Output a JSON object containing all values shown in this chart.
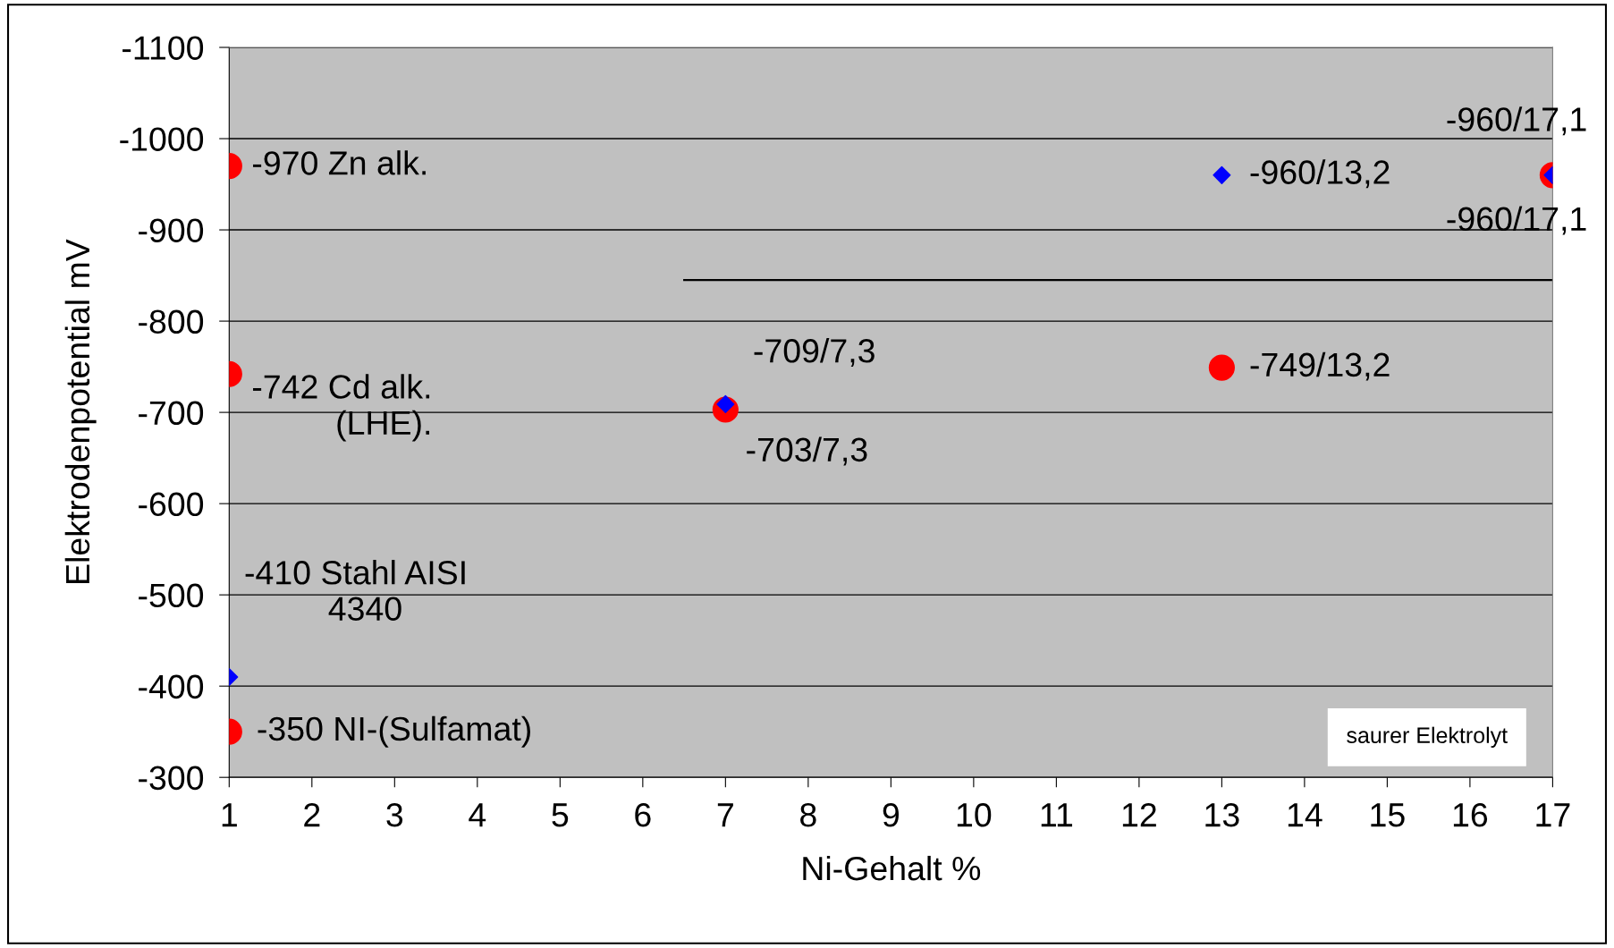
{
  "chart_data": {
    "type": "scatter",
    "xlabel": "Ni-Gehalt %",
    "ylabel": "Elektrodenpotential mV",
    "xlim": [
      1,
      17
    ],
    "xticks": [
      1,
      2,
      3,
      4,
      5,
      6,
      7,
      8,
      9,
      10,
      11,
      12,
      13,
      14,
      15,
      16,
      17
    ],
    "ylim": [
      -300,
      -1100
    ],
    "yticks": [
      -300,
      -400,
      -500,
      -600,
      -700,
      -800,
      -900,
      -1000,
      -1100
    ],
    "grid": "y",
    "legend": false,
    "series": [
      {
        "color": "#ff0000",
        "marker": "circle",
        "x": [
          1,
          1,
          1,
          7,
          13,
          17
        ],
        "values": [
          -970,
          -742,
          -350,
          -703,
          -749,
          -960
        ]
      },
      {
        "color": "#0000ff",
        "marker": "diamond",
        "x": [
          1,
          7,
          13,
          17
        ],
        "values": [
          -410,
          -709,
          -960,
          -960
        ]
      },
      {
        "type": "line",
        "color": "#000000",
        "marker": "none",
        "x": [
          6.5,
          17
        ],
        "values": [
          -845,
          -845
        ]
      }
    ],
    "annotations": [
      {
        "text": "-970 Zn alk.",
        "x": 1,
        "y": -970
      },
      {
        "text": "-742 Cd alk.\n         (LHE).",
        "x": 1,
        "y": -742
      },
      {
        "text": "-350 NI-(Sulfamat)",
        "x": 1,
        "y": -350
      },
      {
        "text": "-410 Stahl AISI\n         4340",
        "x": 1,
        "y": -410
      },
      {
        "text": "-709/7,3",
        "x": 7,
        "y": -709
      },
      {
        "text": "-703/7,3",
        "x": 7,
        "y": -703
      },
      {
        "text": "-749/13,2",
        "x": 13,
        "y": -749
      },
      {
        "text": "-960/13,2",
        "x": 13,
        "y": -960
      },
      {
        "text": "-960/17,1",
        "x": 17,
        "y": -960
      },
      {
        "text": "-960/17,1",
        "x": 17,
        "y": -960
      },
      "saurer Elektrolyt"
    ]
  }
}
